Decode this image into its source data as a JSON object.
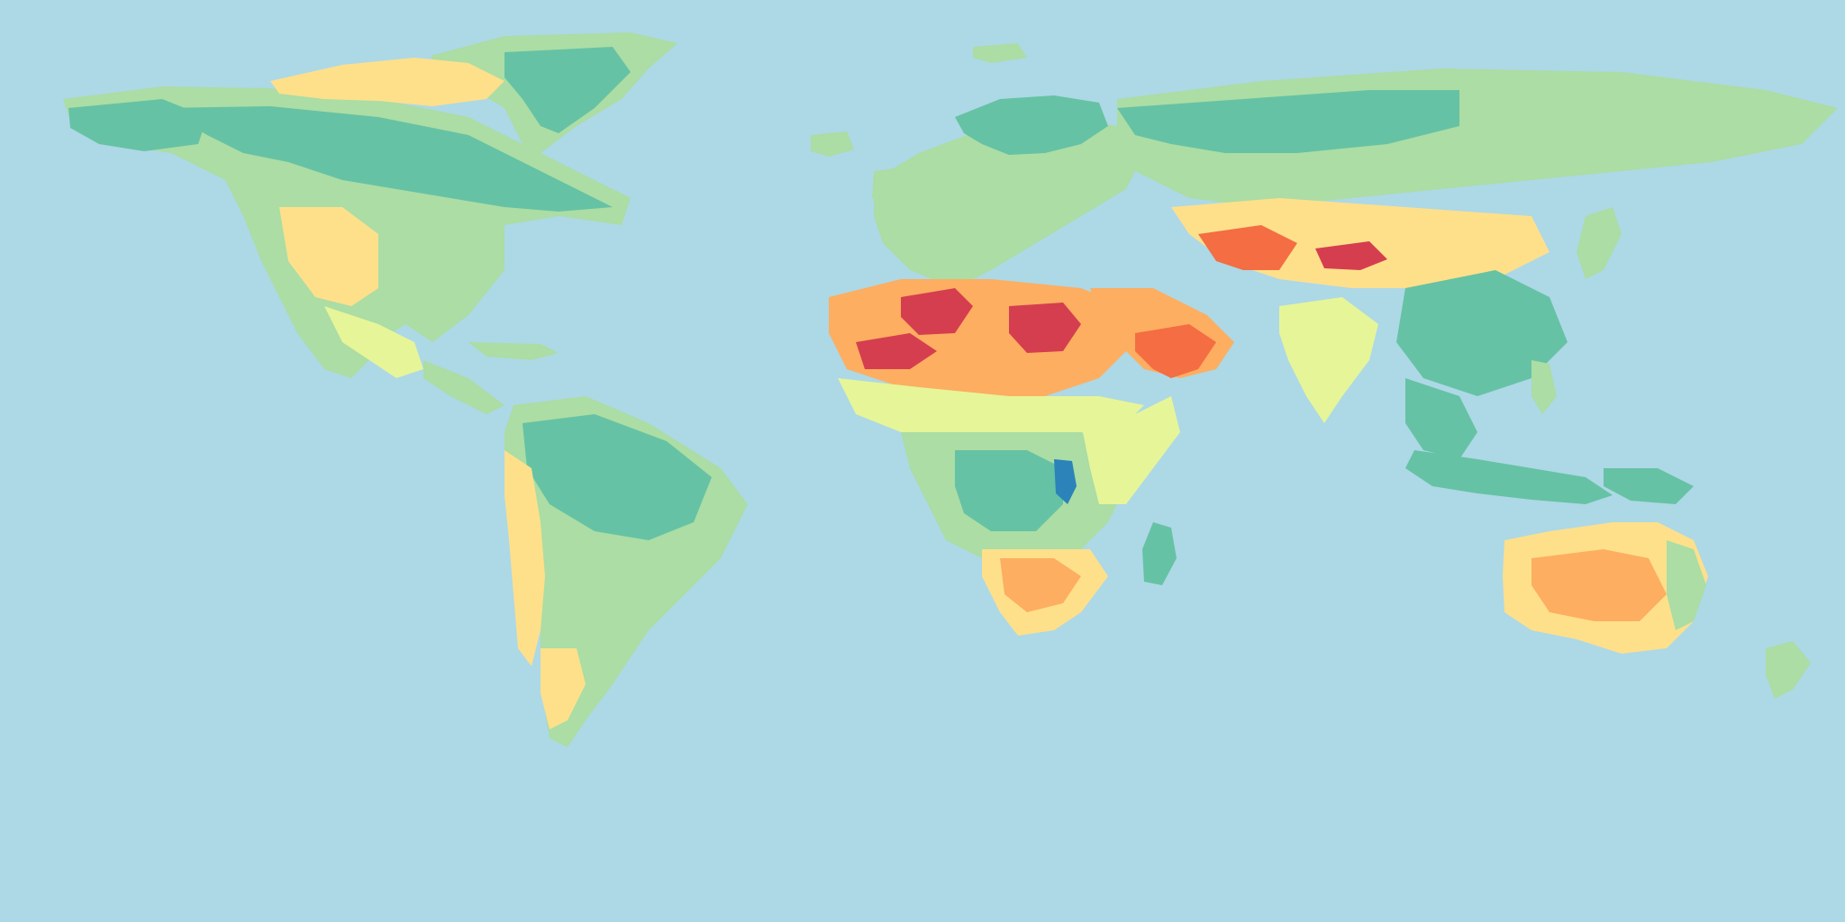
{
  "map": {
    "projection": "equirectangular",
    "colors": {
      "ocean": "#add8e6",
      "scale": [
        "#2b83ba",
        "#66c2a4",
        "#abdda4",
        "#e6f598",
        "#fee08b",
        "#fdae61",
        "#f46d43",
        "#d53e4f"
      ]
    },
    "regions": [
      {
        "name": "greenland",
        "class_index": 2
      },
      {
        "name": "greenland-interior",
        "class_index": 1
      },
      {
        "name": "north-america",
        "class_index": 2
      },
      {
        "name": "canada-boreal",
        "class_index": 1
      },
      {
        "name": "alaska",
        "class_index": 1
      },
      {
        "name": "arctic-islands",
        "class_index": 4
      },
      {
        "name": "us-west-dry",
        "class_index": 4
      },
      {
        "name": "mexico",
        "class_index": 3
      },
      {
        "name": "central-america",
        "class_index": 2
      },
      {
        "name": "south-america",
        "class_index": 2
      },
      {
        "name": "amazon",
        "class_index": 1
      },
      {
        "name": "andes-west",
        "class_index": 4
      },
      {
        "name": "patagonia",
        "class_index": 4
      },
      {
        "name": "europe",
        "class_index": 2
      },
      {
        "name": "scandinavia",
        "class_index": 1
      },
      {
        "name": "siberia",
        "class_index": 2
      },
      {
        "name": "siberia-forest",
        "class_index": 1
      },
      {
        "name": "central-asia-dry",
        "class_index": 4
      },
      {
        "name": "central-asia-hot",
        "class_index": 6
      },
      {
        "name": "taklamakan",
        "class_index": 7
      },
      {
        "name": "east-asia",
        "class_index": 1
      },
      {
        "name": "india",
        "class_index": 3
      },
      {
        "name": "southeast-asia",
        "class_index": 1
      },
      {
        "name": "indonesia",
        "class_index": 1
      },
      {
        "name": "arabia",
        "class_index": 5
      },
      {
        "name": "arabia-core",
        "class_index": 6
      },
      {
        "name": "sahara",
        "class_index": 5
      },
      {
        "name": "sahara-hot-west",
        "class_index": 7
      },
      {
        "name": "sahara-hot-central",
        "class_index": 7
      },
      {
        "name": "sahara-hot-east",
        "class_index": 7
      },
      {
        "name": "sahel",
        "class_index": 3
      },
      {
        "name": "central-africa",
        "class_index": 2
      },
      {
        "name": "congo",
        "class_index": 1
      },
      {
        "name": "lake-region",
        "class_index": 0
      },
      {
        "name": "east-africa",
        "class_index": 3
      },
      {
        "name": "southern-africa",
        "class_index": 4
      },
      {
        "name": "kalahari",
        "class_index": 5
      },
      {
        "name": "madagascar",
        "class_index": 1
      },
      {
        "name": "australia",
        "class_index": 4
      },
      {
        "name": "australia-interior",
        "class_index": 5
      },
      {
        "name": "australia-east-coast",
        "class_index": 2
      },
      {
        "name": "new-zealand",
        "class_index": 2
      },
      {
        "name": "japan",
        "class_index": 2
      },
      {
        "name": "uk-ireland",
        "class_index": 2
      },
      {
        "name": "iceland",
        "class_index": 2
      },
      {
        "name": "svalbard",
        "class_index": 2
      },
      {
        "name": "new-guinea",
        "class_index": 1
      },
      {
        "name": "philippines",
        "class_index": 2
      },
      {
        "name": "caribbean",
        "class_index": 2
      }
    ]
  }
}
